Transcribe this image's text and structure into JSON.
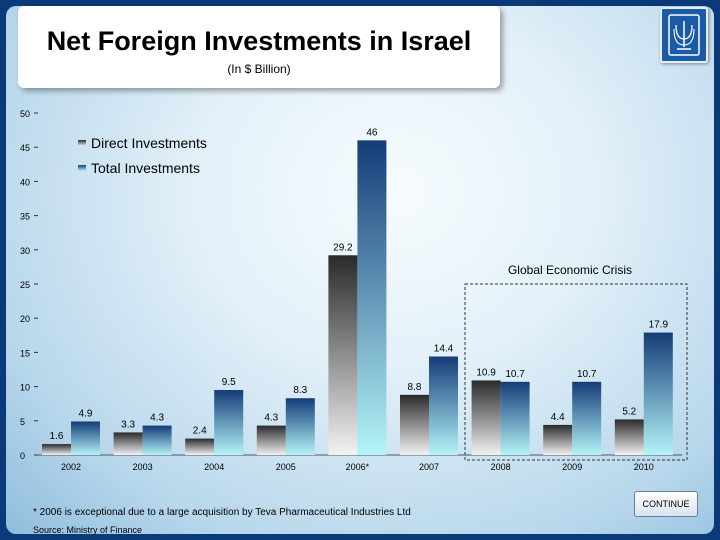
{
  "header": {
    "title": "Net Foreign Investments in Israel",
    "subtitle": "(In $ Billion)"
  },
  "footer": {
    "footnote": "* 2006 is exceptional due to a large acquisition by Teva Pharmaceutical Industries Ltd",
    "source": "Source: Ministry of Finance",
    "continue_label": "CONTINUE"
  },
  "colors": {
    "direct_dark": "#2a2a2a",
    "direct_light": "#f2f2f2",
    "total_dark": "#143c78",
    "total_light": "#b4f4f8",
    "slide_border": "#0a3a78"
  },
  "chart_data": {
    "type": "bar",
    "categories": [
      "2002",
      "2003",
      "2004",
      "2005",
      "2006*",
      "2007",
      "2008",
      "2009",
      "2010"
    ],
    "series": [
      {
        "name": "Direct Investments",
        "values": [
          1.6,
          3.3,
          2.4,
          4.3,
          29.2,
          8.8,
          10.9,
          4.4,
          5.2
        ],
        "labels": [
          "1.6",
          "3.3",
          "2.4",
          "4.3",
          "29.2",
          "8.8",
          "10.9",
          "4.4",
          "5.2"
        ]
      },
      {
        "name": "Total Investments",
        "values": [
          4.9,
          4.3,
          9.5,
          8.3,
          46,
          14.4,
          10.7,
          10.7,
          17.9
        ],
        "labels": [
          "4.9",
          "4.3",
          "9.5",
          "8.3",
          "46",
          "14.4",
          "10.7",
          "10.7",
          "17.9"
        ]
      }
    ],
    "ylim": [
      0,
      50
    ],
    "yticks": [
      0,
      5,
      10,
      15,
      20,
      25,
      30,
      35,
      40,
      45,
      50
    ],
    "legend_position": "top-left",
    "annotation": "Global Economic Crisis"
  }
}
